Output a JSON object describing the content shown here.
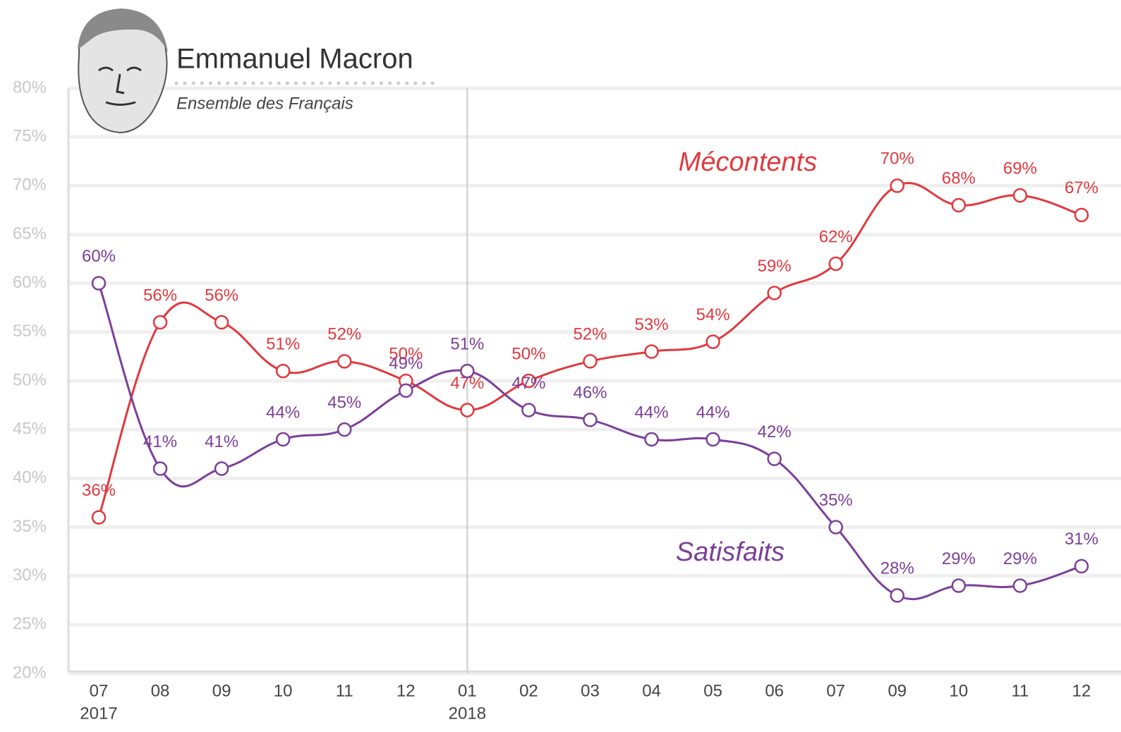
{
  "chart_data": {
    "type": "line",
    "title": "Emmanuel Macron",
    "subtitle": "Ensemble des Français",
    "categories": [
      "07",
      "08",
      "09",
      "10",
      "11",
      "12",
      "01",
      "02",
      "03",
      "04",
      "05",
      "06",
      "07",
      "09",
      "10",
      "11",
      "12"
    ],
    "year_labels": [
      {
        "index": 0,
        "label": "2017"
      },
      {
        "index": 6,
        "label": "2018"
      }
    ],
    "series": [
      {
        "name": "Mécontents",
        "color": "#e0393e",
        "values": [
          36,
          56,
          56,
          51,
          52,
          50,
          47,
          50,
          52,
          53,
          54,
          59,
          62,
          70,
          68,
          69,
          67
        ],
        "value_labels": [
          "36%",
          "56%",
          "56%",
          "51%",
          "52%",
          "50%",
          "47%",
          "50%",
          "52%",
          "53%",
          "54%",
          "59%",
          "62%",
          "70%",
          "68%",
          "69%",
          "67%"
        ]
      },
      {
        "name": "Satisfaits",
        "color": "#7b3f98",
        "values": [
          60,
          41,
          41,
          44,
          45,
          49,
          51,
          47,
          46,
          44,
          44,
          42,
          35,
          28,
          29,
          29,
          31
        ],
        "value_labels": [
          "60%",
          "41%",
          "41%",
          "44%",
          "45%",
          "49%",
          "51%",
          "47%",
          "46%",
          "44%",
          "44%",
          "42%",
          "35%",
          "28%",
          "29%",
          "29%",
          "31%"
        ]
      }
    ],
    "ylim": [
      20,
      80
    ],
    "yticks": [
      {
        "value": 20,
        "label": "20%"
      },
      {
        "value": 25,
        "label": "25%"
      },
      {
        "value": 30,
        "label": "30%"
      },
      {
        "value": 35,
        "label": "35%"
      },
      {
        "value": 40,
        "label": "40%"
      },
      {
        "value": 45,
        "label": "45%"
      },
      {
        "value": 50,
        "label": "50%"
      },
      {
        "value": 55,
        "label": "55%"
      },
      {
        "value": 60,
        "label": "60%"
      },
      {
        "value": 65,
        "label": "65%"
      },
      {
        "value": 70,
        "label": "70%"
      },
      {
        "value": 75,
        "label": "75%"
      },
      {
        "value": 80,
        "label": "80%"
      }
    ],
    "grid": true
  }
}
